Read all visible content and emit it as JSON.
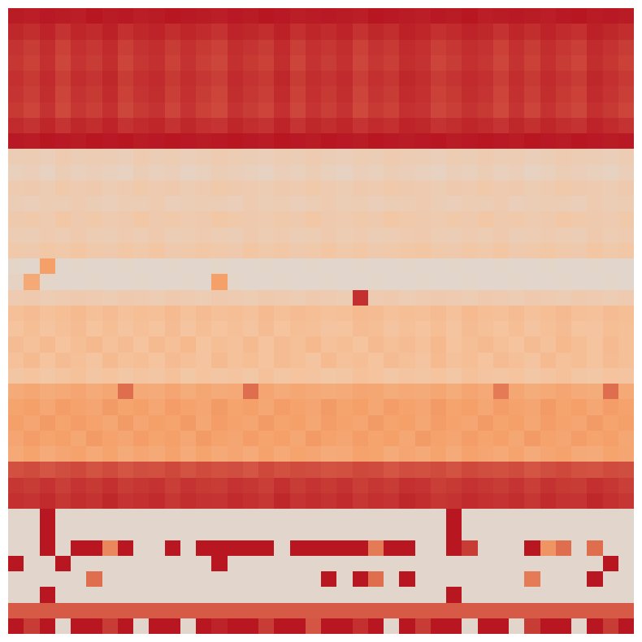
{
  "chart_data": {
    "type": "heatmap",
    "color": "Plasma",
    "tick_labels": false,
    "zlim": [
      0,
      100
    ],
    "z": [
      [
        93,
        92,
        94,
        93,
        92,
        95,
        93,
        94,
        92,
        93,
        95,
        94,
        93,
        92,
        94,
        93,
        95,
        94,
        92,
        93,
        94,
        93,
        92,
        95,
        94,
        93,
        92,
        94,
        93,
        95,
        92,
        93,
        94,
        93,
        92,
        94,
        95,
        93,
        94,
        93
      ],
      [
        88,
        86,
        90,
        84,
        89,
        87,
        91,
        85,
        88,
        90,
        86,
        89,
        87,
        84,
        90,
        88,
        86,
        91,
        85,
        89,
        87,
        90,
        84,
        88,
        86,
        91,
        89,
        85,
        87,
        90,
        88,
        84,
        89,
        86,
        90,
        87,
        85,
        91,
        88,
        86
      ],
      [
        84,
        80,
        86,
        78,
        85,
        82,
        87,
        79,
        84,
        86,
        80,
        85,
        81,
        78,
        86,
        83,
        80,
        87,
        79,
        85,
        82,
        86,
        78,
        84,
        81,
        87,
        85,
        79,
        82,
        86,
        84,
        78,
        85,
        80,
        86,
        82,
        79,
        87,
        84,
        80
      ],
      [
        82,
        78,
        85,
        76,
        83,
        80,
        86,
        77,
        82,
        85,
        78,
        84,
        79,
        76,
        85,
        81,
        78,
        86,
        77,
        84,
        80,
        85,
        76,
        82,
        79,
        86,
        84,
        77,
        80,
        85,
        82,
        76,
        84,
        78,
        85,
        80,
        77,
        86,
        82,
        78
      ],
      [
        85,
        81,
        87,
        79,
        86,
        83,
        88,
        80,
        85,
        87,
        81,
        86,
        82,
        79,
        87,
        84,
        81,
        88,
        80,
        86,
        83,
        87,
        79,
        85,
        82,
        88,
        86,
        80,
        83,
        87,
        85,
        79,
        86,
        81,
        87,
        83,
        80,
        88,
        85,
        81
      ],
      [
        83,
        79,
        86,
        77,
        84,
        81,
        87,
        78,
        83,
        86,
        79,
        85,
        80,
        77,
        86,
        82,
        79,
        87,
        78,
        85,
        81,
        86,
        77,
        83,
        80,
        87,
        85,
        78,
        81,
        86,
        83,
        77,
        85,
        79,
        86,
        81,
        78,
        87,
        83,
        79
      ],
      [
        81,
        77,
        84,
        75,
        82,
        79,
        85,
        76,
        81,
        84,
        77,
        83,
        78,
        75,
        84,
        80,
        77,
        85,
        76,
        83,
        79,
        84,
        75,
        81,
        78,
        85,
        83,
        76,
        79,
        84,
        81,
        75,
        83,
        77,
        84,
        79,
        76,
        85,
        81,
        77
      ],
      [
        87,
        84,
        89,
        83,
        88,
        86,
        90,
        84,
        87,
        89,
        84,
        88,
        85,
        83,
        89,
        86,
        84,
        90,
        83,
        88,
        86,
        89,
        83,
        87,
        85,
        90,
        88,
        84,
        86,
        89,
        87,
        83,
        88,
        85,
        89,
        86,
        84,
        90,
        87,
        84
      ],
      [
        94,
        93,
        95,
        94,
        93,
        95,
        94,
        95,
        93,
        94,
        95,
        94,
        93,
        94,
        95,
        94,
        93,
        95,
        94,
        93,
        95,
        94,
        93,
        95,
        94,
        93,
        94,
        95,
        93,
        94,
        95,
        94,
        93,
        95,
        94,
        93,
        95,
        94,
        93,
        94
      ],
      [
        12,
        13,
        11,
        14,
        12,
        13,
        12,
        11,
        14,
        12,
        13,
        11,
        12,
        14,
        13,
        12,
        11,
        13,
        12,
        14,
        12,
        11,
        13,
        12,
        14,
        13,
        12,
        11,
        13,
        12,
        14,
        12,
        13,
        11,
        12,
        14,
        13,
        12,
        11,
        13
      ],
      [
        10,
        11,
        9,
        12,
        10,
        11,
        10,
        9,
        12,
        10,
        11,
        9,
        10,
        12,
        11,
        10,
        9,
        11,
        10,
        12,
        10,
        9,
        11,
        10,
        12,
        11,
        10,
        9,
        11,
        10,
        12,
        10,
        11,
        9,
        10,
        12,
        11,
        10,
        9,
        11
      ],
      [
        14,
        15,
        13,
        16,
        14,
        15,
        13,
        14,
        16,
        14,
        15,
        13,
        14,
        16,
        15,
        14,
        13,
        15,
        14,
        16,
        14,
        13,
        15,
        14,
        16,
        15,
        14,
        13,
        15,
        14,
        16,
        14,
        15,
        13,
        14,
        16,
        15,
        14,
        13,
        15
      ],
      [
        12,
        11,
        13,
        12,
        14,
        12,
        11,
        13,
        12,
        14,
        11,
        12,
        13,
        12,
        11,
        14,
        12,
        13,
        11,
        12,
        14,
        12,
        13,
        11,
        12,
        13,
        14,
        12,
        11,
        13,
        12,
        14,
        11,
        12,
        13,
        12,
        11,
        14,
        12,
        13
      ],
      [
        15,
        16,
        14,
        17,
        15,
        16,
        14,
        15,
        17,
        15,
        16,
        14,
        15,
        17,
        16,
        15,
        14,
        16,
        15,
        17,
        15,
        14,
        16,
        15,
        17,
        16,
        15,
        14,
        16,
        15,
        17,
        15,
        16,
        14,
        15,
        17,
        16,
        15,
        14,
        16
      ],
      [
        13,
        12,
        14,
        13,
        15,
        13,
        12,
        14,
        13,
        15,
        12,
        13,
        14,
        13,
        12,
        15,
        13,
        14,
        12,
        13,
        15,
        13,
        14,
        12,
        13,
        14,
        15,
        13,
        12,
        14,
        13,
        15,
        12,
        13,
        14,
        13,
        12,
        15,
        13,
        14
      ],
      [
        16,
        15,
        17,
        16,
        18,
        16,
        15,
        17,
        16,
        18,
        15,
        16,
        17,
        16,
        15,
        18,
        16,
        17,
        15,
        16,
        18,
        16,
        17,
        15,
        16,
        17,
        18,
        16,
        15,
        17,
        16,
        18,
        15,
        16,
        17,
        16,
        15,
        18,
        16,
        17
      ],
      [
        6,
        5,
        40,
        5,
        6,
        5,
        5,
        6,
        5,
        5,
        6,
        5,
        5,
        6,
        5,
        5,
        6,
        5,
        5,
        6,
        5,
        5,
        6,
        5,
        5,
        6,
        5,
        5,
        6,
        5,
        5,
        6,
        5,
        5,
        6,
        5,
        5,
        6,
        5,
        5
      ],
      [
        8,
        35,
        6,
        5,
        5,
        6,
        5,
        5,
        6,
        5,
        5,
        6,
        5,
        40,
        6,
        5,
        5,
        6,
        5,
        5,
        6,
        5,
        5,
        6,
        5,
        5,
        6,
        5,
        5,
        6,
        5,
        5,
        6,
        5,
        5,
        6,
        5,
        5,
        6,
        5
      ],
      [
        14,
        15,
        13,
        14,
        15,
        14,
        13,
        15,
        14,
        13,
        15,
        14,
        13,
        15,
        14,
        13,
        15,
        14,
        13,
        15,
        14,
        13,
        85,
        14,
        15,
        13,
        14,
        15,
        14,
        13,
        15,
        14,
        13,
        15,
        14,
        13,
        15,
        14,
        13,
        14
      ],
      [
        22,
        24,
        21,
        23,
        25,
        22,
        24,
        21,
        23,
        22,
        25,
        21,
        24,
        22,
        23,
        21,
        25,
        22,
        24,
        23,
        21,
        22,
        25,
        24,
        21,
        23,
        22,
        24,
        21,
        25,
        23,
        22,
        24,
        21,
        23,
        25,
        22,
        21,
        24,
        23
      ],
      [
        20,
        23,
        19,
        22,
        24,
        20,
        23,
        19,
        22,
        20,
        24,
        19,
        23,
        20,
        22,
        19,
        24,
        20,
        23,
        22,
        19,
        20,
        24,
        23,
        19,
        22,
        20,
        23,
        19,
        24,
        22,
        20,
        23,
        19,
        22,
        24,
        20,
        19,
        23,
        22
      ],
      [
        24,
        21,
        25,
        20,
        23,
        26,
        21,
        24,
        20,
        25,
        22,
        26,
        20,
        23,
        21,
        25,
        20,
        24,
        22,
        26,
        21,
        23,
        20,
        25,
        22,
        24,
        21,
        26,
        20,
        23,
        25,
        22,
        20,
        24,
        21,
        26,
        23,
        20,
        25,
        22
      ],
      [
        21,
        25,
        20,
        24,
        22,
        19,
        25,
        21,
        23,
        20,
        24,
        22,
        19,
        25,
        21,
        23,
        20,
        24,
        22,
        19,
        25,
        21,
        23,
        20,
        24,
        22,
        19,
        25,
        21,
        23,
        20,
        24,
        22,
        19,
        25,
        21,
        23,
        20,
        24,
        22
      ],
      [
        18,
        20,
        17,
        19,
        21,
        18,
        20,
        17,
        19,
        18,
        21,
        17,
        20,
        18,
        19,
        17,
        21,
        18,
        20,
        19,
        17,
        18,
        21,
        20,
        17,
        19,
        18,
        20,
        17,
        21,
        19,
        18,
        20,
        17,
        19,
        21,
        18,
        17,
        20,
        19
      ],
      [
        34,
        36,
        33,
        35,
        37,
        34,
        36,
        60,
        35,
        34,
        37,
        33,
        36,
        34,
        35,
        60,
        37,
        34,
        36,
        35,
        33,
        34,
        37,
        36,
        33,
        35,
        34,
        36,
        33,
        37,
        35,
        55,
        36,
        33,
        35,
        37,
        34,
        33,
        60,
        35
      ],
      [
        38,
        40,
        36,
        41,
        39,
        37,
        42,
        38,
        40,
        36,
        41,
        39,
        37,
        42,
        38,
        40,
        36,
        41,
        39,
        37,
        42,
        38,
        40,
        36,
        41,
        39,
        37,
        42,
        38,
        40,
        36,
        41,
        39,
        37,
        42,
        38,
        40,
        36,
        41,
        39
      ],
      [
        40,
        37,
        42,
        38,
        41,
        39,
        36,
        42,
        37,
        40,
        38,
        42,
        36,
        41,
        39,
        37,
        42,
        38,
        40,
        36,
        41,
        39,
        37,
        42,
        38,
        40,
        36,
        41,
        39,
        37,
        42,
        38,
        40,
        36,
        41,
        39,
        37,
        42,
        38,
        40
      ],
      [
        37,
        41,
        38,
        40,
        36,
        42,
        39,
        37,
        41,
        38,
        40,
        36,
        42,
        39,
        37,
        41,
        38,
        40,
        36,
        42,
        39,
        37,
        41,
        38,
        40,
        36,
        42,
        39,
        37,
        41,
        38,
        40,
        36,
        42,
        39,
        37,
        41,
        38,
        40,
        36
      ],
      [
        35,
        38,
        34,
        37,
        39,
        35,
        38,
        34,
        37,
        35,
        39,
        34,
        38,
        35,
        37,
        34,
        39,
        35,
        38,
        37,
        34,
        35,
        39,
        38,
        34,
        37,
        35,
        38,
        34,
        39,
        37,
        35,
        38,
        34,
        37,
        39,
        35,
        34,
        38,
        37
      ],
      [
        72,
        74,
        70,
        73,
        75,
        71,
        74,
        70,
        73,
        72,
        75,
        71,
        74,
        72,
        73,
        70,
        75,
        72,
        74,
        73,
        71,
        72,
        75,
        74,
        70,
        73,
        72,
        74,
        71,
        75,
        73,
        72,
        74,
        70,
        73,
        75,
        72,
        71,
        74,
        73
      ],
      [
        82,
        80,
        84,
        79,
        83,
        81,
        85,
        80,
        82,
        84,
        79,
        83,
        81,
        80,
        84,
        82,
        79,
        85,
        80,
        83,
        81,
        84,
        79,
        82,
        80,
        85,
        83,
        79,
        81,
        84,
        82,
        80,
        83,
        79,
        84,
        81,
        80,
        85,
        82,
        79
      ],
      [
        85,
        83,
        87,
        82,
        86,
        84,
        88,
        83,
        85,
        87,
        82,
        86,
        84,
        83,
        87,
        85,
        82,
        88,
        83,
        86,
        84,
        87,
        82,
        85,
        83,
        88,
        86,
        82,
        84,
        87,
        85,
        83,
        86,
        82,
        87,
        84,
        83,
        88,
        85,
        82
      ],
      [
        5,
        5,
        95,
        5,
        5,
        5,
        5,
        5,
        5,
        5,
        5,
        5,
        5,
        5,
        5,
        5,
        5,
        5,
        5,
        5,
        5,
        5,
        5,
        5,
        5,
        5,
        5,
        5,
        95,
        5,
        5,
        5,
        5,
        5,
        5,
        5,
        5,
        5,
        5,
        5
      ],
      [
        5,
        5,
        95,
        5,
        5,
        5,
        5,
        5,
        5,
        5,
        5,
        5,
        5,
        5,
        5,
        5,
        5,
        5,
        5,
        5,
        5,
        5,
        5,
        5,
        5,
        5,
        5,
        5,
        95,
        5,
        5,
        5,
        5,
        5,
        5,
        5,
        5,
        5,
        5,
        5
      ],
      [
        5,
        5,
        95,
        5,
        95,
        95,
        50,
        95,
        5,
        5,
        95,
        5,
        95,
        95,
        95,
        95,
        95,
        5,
        95,
        95,
        95,
        95,
        95,
        55,
        95,
        95,
        5,
        5,
        95,
        80,
        5,
        5,
        5,
        95,
        45,
        60,
        5,
        60,
        5,
        5
      ],
      [
        95,
        5,
        5,
        95,
        5,
        5,
        5,
        5,
        5,
        5,
        5,
        5,
        5,
        95,
        5,
        5,
        5,
        5,
        5,
        5,
        5,
        5,
        5,
        5,
        5,
        5,
        5,
        5,
        5,
        5,
        5,
        5,
        5,
        5,
        5,
        5,
        5,
        5,
        95,
        5
      ],
      [
        5,
        5,
        5,
        5,
        5,
        60,
        5,
        5,
        5,
        5,
        5,
        5,
        5,
        5,
        5,
        5,
        5,
        5,
        5,
        5,
        95,
        5,
        95,
        60,
        5,
        95,
        5,
        5,
        5,
        5,
        5,
        5,
        5,
        55,
        5,
        5,
        5,
        95,
        5,
        5
      ],
      [
        5,
        5,
        95,
        5,
        5,
        5,
        5,
        5,
        5,
        5,
        5,
        5,
        5,
        5,
        5,
        5,
        5,
        5,
        5,
        5,
        5,
        5,
        5,
        5,
        5,
        5,
        5,
        5,
        95,
        5,
        5,
        5,
        5,
        5,
        5,
        5,
        5,
        5,
        5,
        5
      ],
      [
        68,
        68,
        68,
        68,
        68,
        68,
        68,
        68,
        68,
        68,
        68,
        68,
        68,
        68,
        68,
        68,
        68,
        68,
        68,
        68,
        68,
        68,
        68,
        68,
        68,
        68,
        68,
        68,
        68,
        68,
        68,
        68,
        68,
        68,
        68,
        68,
        68,
        68,
        68,
        68
      ],
      [
        95,
        80,
        95,
        5,
        95,
        95,
        80,
        95,
        5,
        95,
        95,
        5,
        95,
        90,
        95,
        95,
        80,
        95,
        95,
        70,
        95,
        95,
        85,
        95,
        5,
        95,
        80,
        95,
        95,
        5,
        95,
        95,
        5,
        80,
        95,
        95,
        5,
        95,
        80,
        95
      ]
    ]
  }
}
